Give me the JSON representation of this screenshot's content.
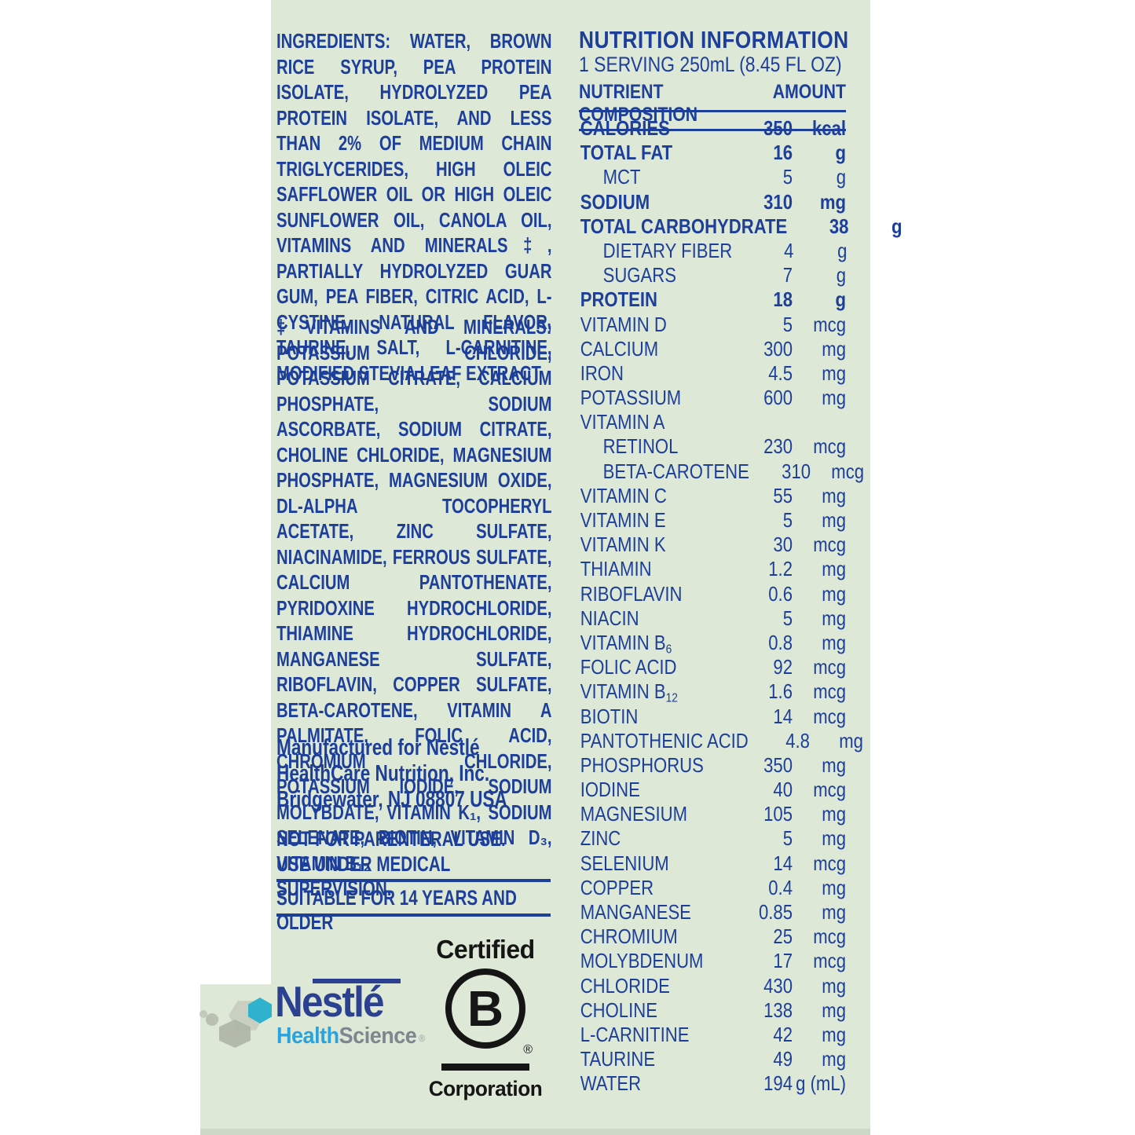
{
  "label": {
    "ingredients": {
      "lead": "INGREDIENTS:",
      "text": " WATER, BROWN RICE SYRUP, PEA PROTEIN ISOLATE, HYDROLYZED PEA PROTEIN ISOLATE, AND LESS THAN 2% OF MEDIUM CHAIN TRIGLYCERIDES, HIGH OLEIC SAFFLOWER OIL OR HIGH OLEIC SUNFLOWER OIL, CANOLA OIL, VITAMINS AND MINERALS‡, PARTIALLY HYDROLYZED GUAR GUM, PEA FIBER, CITRIC ACID, L-CYSTINE, NATURAL FLAVOR, TAURINE, SALT, L-CARNITINE, MODIFIED STEVIA LEAF EXTRACT"
    },
    "vitamins_minerals": {
      "lead": "‡VITAMINS AND MINERALS:",
      "text": " POTASSIUM CHLORIDE, POTASSIUM CITRATE, CALCIUM PHOSPHATE, SODIUM ASCORBATE, SODIUM CITRATE, CHOLINE CHLORIDE, MAGNESIUM PHOSPHATE, MAGNESIUM OXIDE, DL-ALPHA TOCOPHERYL ACETATE, ZINC SULFATE, NIACINAMIDE, FERROUS SULFATE, CALCIUM PANTOTHENATE, PYRIDOXINE HYDROCHLORIDE, THIAMINE HYDROCHLORIDE, MANGANESE SULFATE, RIBOFLAVIN, COPPER SULFATE, BETA-CAROTENE, VITAMIN A PALMITATE, FOLIC ACID, CHROMIUM CHLORIDE, POTASSIUM IODIDE, SODIUM MOLYBDATE, VITAMIN K₁, SODIUM SELENATE, BIOTIN, VITAMIN D₃, VITAMIN B₁₂"
    },
    "manufacturer_lines": [
      "Manufactured for Nestlé",
      "HealthCare Nutrition, Inc.",
      "Bridgewater, NJ 08807 USA"
    ],
    "warnings": [
      "NOT FOR PARENTERAL USE.",
      "USE UNDER MEDICAL SUPERVISION."
    ],
    "suitability": "SUITABLE FOR 14 YEARS AND OLDER"
  },
  "nutrition": {
    "title": "NUTRITION INFORMATION",
    "serving": "1 SERVING 250mL (8.45 FL OZ)",
    "col_nutrient": "NUTRIENT COMPOSITION",
    "col_amount": "AMOUNT",
    "rows": [
      {
        "name": "CALORIES",
        "sub": "",
        "value": "350",
        "unit": "kcal",
        "bold": true,
        "indent": false
      },
      {
        "name": "TOTAL FAT",
        "sub": "",
        "value": "16",
        "unit": "g",
        "bold": true,
        "indent": false
      },
      {
        "name": "MCT",
        "sub": "",
        "value": "5",
        "unit": "g",
        "bold": false,
        "indent": true
      },
      {
        "name": "SODIUM",
        "sub": "",
        "value": "310",
        "unit": "mg",
        "bold": true,
        "indent": false
      },
      {
        "name": "TOTAL CARBOHYDRATE",
        "sub": "",
        "value": "38",
        "unit": "g",
        "bold": true,
        "indent": false
      },
      {
        "name": "DIETARY FIBER",
        "sub": "",
        "value": "4",
        "unit": "g",
        "bold": false,
        "indent": true
      },
      {
        "name": "SUGARS",
        "sub": "",
        "value": "7",
        "unit": "g",
        "bold": false,
        "indent": true
      },
      {
        "name": "PROTEIN",
        "sub": "",
        "value": "18",
        "unit": "g",
        "bold": true,
        "indent": false
      },
      {
        "name": "VITAMIN D",
        "sub": "",
        "value": "5",
        "unit": "mcg",
        "bold": false,
        "indent": false
      },
      {
        "name": "CALCIUM",
        "sub": "",
        "value": "300",
        "unit": "mg",
        "bold": false,
        "indent": false
      },
      {
        "name": "IRON",
        "sub": "",
        "value": "4.5",
        "unit": "mg",
        "bold": false,
        "indent": false
      },
      {
        "name": "POTASSIUM",
        "sub": "",
        "value": "600",
        "unit": "mg",
        "bold": false,
        "indent": false
      },
      {
        "name": "VITAMIN A",
        "sub": "",
        "value": "",
        "unit": "",
        "bold": false,
        "indent": false
      },
      {
        "name": "RETINOL",
        "sub": "",
        "value": "230",
        "unit": "mcg",
        "bold": false,
        "indent": true
      },
      {
        "name": "BETA-CAROTENE",
        "sub": "",
        "value": "310",
        "unit": "mcg",
        "bold": false,
        "indent": true
      },
      {
        "name": "VITAMIN C",
        "sub": "",
        "value": "55",
        "unit": "mg",
        "bold": false,
        "indent": false
      },
      {
        "name": "VITAMIN E",
        "sub": "",
        "value": "5",
        "unit": "mg",
        "bold": false,
        "indent": false
      },
      {
        "name": "VITAMIN K",
        "sub": "",
        "value": "30",
        "unit": "mcg",
        "bold": false,
        "indent": false
      },
      {
        "name": "THIAMIN",
        "sub": "",
        "value": "1.2",
        "unit": "mg",
        "bold": false,
        "indent": false
      },
      {
        "name": "RIBOFLAVIN",
        "sub": "",
        "value": "0.6",
        "unit": "mg",
        "bold": false,
        "indent": false
      },
      {
        "name": "NIACIN",
        "sub": "",
        "value": "5",
        "unit": "mg",
        "bold": false,
        "indent": false
      },
      {
        "name": "VITAMIN B",
        "sub": "6",
        "value": "0.8",
        "unit": "mg",
        "bold": false,
        "indent": false
      },
      {
        "name": "FOLIC ACID",
        "sub": "",
        "value": "92",
        "unit": "mcg",
        "bold": false,
        "indent": false
      },
      {
        "name": "VITAMIN B",
        "sub": "12",
        "value": "1.6",
        "unit": "mcg",
        "bold": false,
        "indent": false
      },
      {
        "name": "BIOTIN",
        "sub": "",
        "value": "14",
        "unit": "mcg",
        "bold": false,
        "indent": false
      },
      {
        "name": "PANTOTHENIC ACID",
        "sub": "",
        "value": "4.8",
        "unit": "mg",
        "bold": false,
        "indent": false
      },
      {
        "name": "PHOSPHORUS",
        "sub": "",
        "value": "350",
        "unit": "mg",
        "bold": false,
        "indent": false
      },
      {
        "name": "IODINE",
        "sub": "",
        "value": "40",
        "unit": "mcg",
        "bold": false,
        "indent": false
      },
      {
        "name": "MAGNESIUM",
        "sub": "",
        "value": "105",
        "unit": "mg",
        "bold": false,
        "indent": false
      },
      {
        "name": "ZINC",
        "sub": "",
        "value": "5",
        "unit": "mg",
        "bold": false,
        "indent": false
      },
      {
        "name": "SELENIUM",
        "sub": "",
        "value": "14",
        "unit": "mcg",
        "bold": false,
        "indent": false
      },
      {
        "name": "COPPER",
        "sub": "",
        "value": "0.4",
        "unit": "mg",
        "bold": false,
        "indent": false
      },
      {
        "name": "MANGANESE",
        "sub": "",
        "value": "0.85",
        "unit": "mg",
        "bold": false,
        "indent": false
      },
      {
        "name": "CHROMIUM",
        "sub": "",
        "value": "25",
        "unit": "mcg",
        "bold": false,
        "indent": false
      },
      {
        "name": "MOLYBDENUM",
        "sub": "",
        "value": "17",
        "unit": "mcg",
        "bold": false,
        "indent": false
      },
      {
        "name": "CHLORIDE",
        "sub": "",
        "value": "430",
        "unit": "mg",
        "bold": false,
        "indent": false
      },
      {
        "name": "CHOLINE",
        "sub": "",
        "value": "138",
        "unit": "mg",
        "bold": false,
        "indent": false
      },
      {
        "name": "L-CARNITINE",
        "sub": "",
        "value": "42",
        "unit": "mg",
        "bold": false,
        "indent": false
      },
      {
        "name": "TAURINE",
        "sub": "",
        "value": "49",
        "unit": "mg",
        "bold": false,
        "indent": false
      },
      {
        "name": "WATER",
        "sub": "",
        "value": "194",
        "unit": "g (mL)",
        "bold": false,
        "indent": false
      }
    ]
  },
  "logos": {
    "nestle": {
      "wordmark": "Nestlé",
      "health": "Health",
      "science": "Science",
      "registered": "®"
    },
    "bcorp": {
      "certified": "Certified",
      "letter": "B",
      "registered": "®",
      "corporation": "Corporation"
    }
  },
  "colors": {
    "label_green": "#dde8d7",
    "text_blue": "#1d3f9a",
    "nestle_navy": "#2b4090",
    "health_blue": "#29a3dc",
    "science_gray": "#7c8790",
    "hex_teal": "#2fb2cd",
    "bcorp_black": "#151515"
  }
}
